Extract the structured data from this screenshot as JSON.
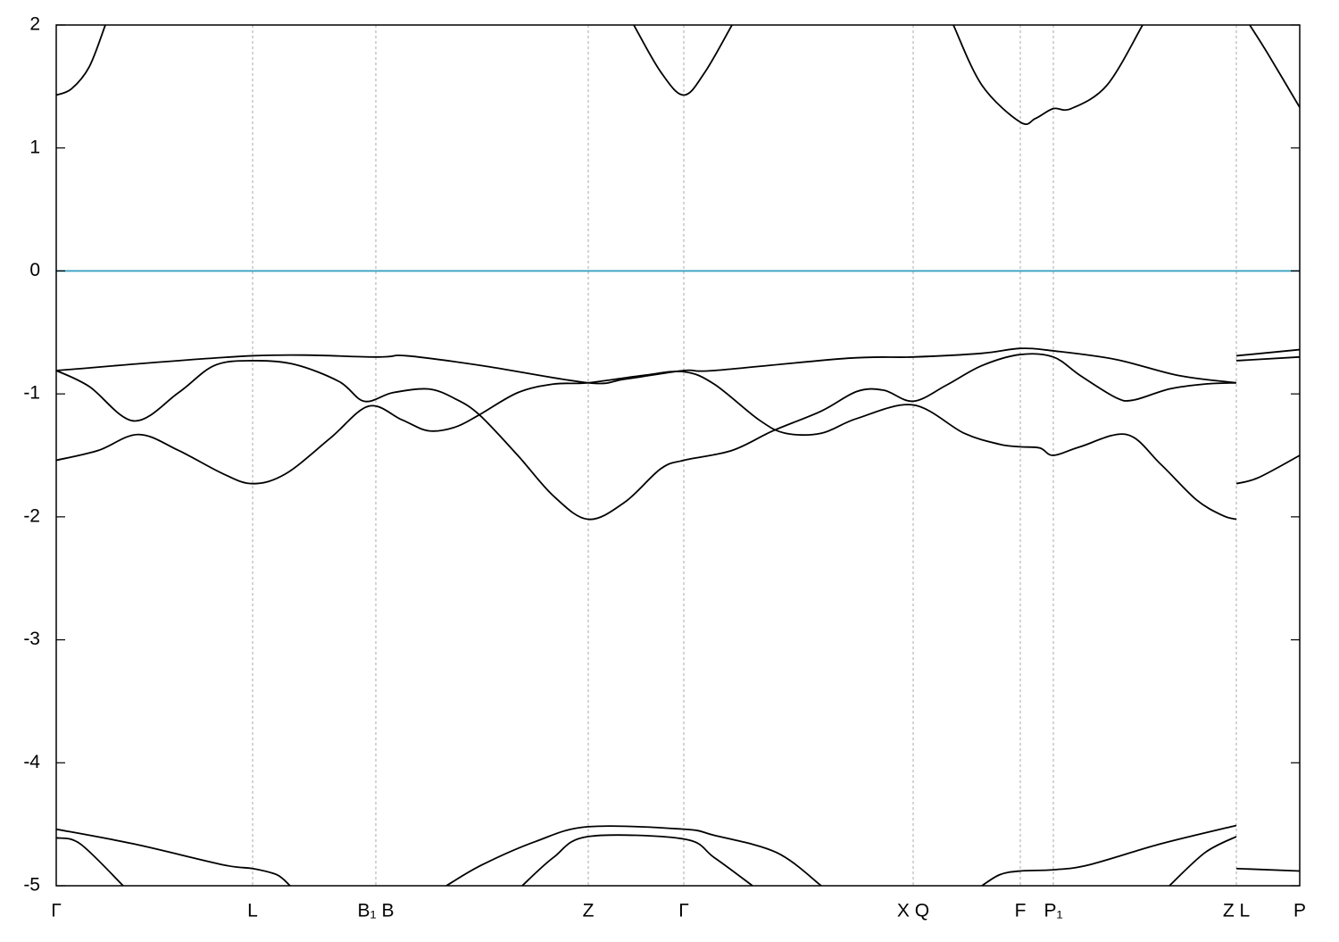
{
  "chart_data": {
    "type": "line",
    "xlim": [
      0,
      13.93
    ],
    "ylim": [
      -5,
      2
    ],
    "yticks": [
      2,
      1,
      0,
      -1,
      -2,
      -3,
      -4,
      -5
    ],
    "xticks": [
      {
        "value": 0,
        "label": "Γ"
      },
      {
        "value": 2.2,
        "label": "L"
      },
      {
        "value": 3.58,
        "label": "B₁ B"
      },
      {
        "value": 5.96,
        "label": "Z"
      },
      {
        "value": 7.03,
        "label": "Γ"
      },
      {
        "value": 9.6,
        "label": "X Q"
      },
      {
        "value": 10.8,
        "label": "F"
      },
      {
        "value": 11.17,
        "label": "P₁"
      },
      {
        "value": 13.22,
        "label": "Z L"
      },
      {
        "value": 13.93,
        "label": "P"
      }
    ],
    "xgrid": true,
    "series": [
      {
        "color": "#3aa0c0",
        "x": [
          0,
          13.93
        ],
        "values": [
          0,
          0
        ]
      },
      {
        "color": "#000000",
        "x": [
          0,
          2.2,
          3.58,
          3.92,
          4.77,
          5.96,
          6.37,
          7.03,
          7.37,
          8.87,
          9.6,
          10.37,
          10.8,
          11.17,
          11.87,
          12.57,
          13.22,
          13.22,
          13.22,
          13.93
        ],
        "values": [
          -0.81,
          -0.69,
          -0.7,
          -0.69,
          -0.77,
          -0.91,
          -0.88,
          -0.81,
          -0.81,
          -0.71,
          -0.7,
          -0.67,
          -0.63,
          -0.65,
          -0.72,
          -0.85,
          -0.91,
          null,
          -0.69,
          -0.64
        ]
      },
      {
        "color": "#000000",
        "x": [
          0,
          0.37,
          0.87,
          1.37,
          1.77,
          2.2,
          2.67,
          3.17,
          3.45,
          3.77,
          4.17,
          4.47,
          4.74,
          5.17,
          5.57,
          5.96,
          6.37,
          6.77,
          7.03,
          7.57,
          8.03,
          8.57,
          8.97,
          9.27,
          9.6,
          9.97,
          10.37,
          10.8,
          11.17,
          11.47,
          11.87,
          12.07,
          12.47,
          12.87,
          13.22,
          13.22,
          13.22,
          13.93
        ],
        "values": [
          -0.81,
          -0.94,
          -1.22,
          -0.99,
          -0.77,
          -0.73,
          -0.76,
          -0.9,
          -1.06,
          -0.99,
          -0.96,
          -1.04,
          -1.17,
          -1.5,
          -1.83,
          -2.02,
          -1.88,
          -1.61,
          -1.54,
          -1.46,
          -1.3,
          -1.14,
          -0.98,
          -0.97,
          -1.06,
          -0.93,
          -0.77,
          -0.68,
          -0.7,
          -0.85,
          -1.03,
          -1.05,
          -0.96,
          -0.92,
          -0.91,
          null,
          -0.73,
          -0.7
        ]
      },
      {
        "color": "#000000",
        "x": [
          0,
          0.47,
          0.92,
          1.37,
          1.87,
          2.2,
          2.57,
          3.07,
          3.5,
          3.87,
          4.17,
          4.47,
          4.74,
          5.17,
          5.57,
          5.96,
          6.57,
          7.03,
          7.37,
          7.87,
          8.17,
          8.57,
          8.97,
          9.6,
          10.17,
          10.57,
          10.8,
          11.02,
          11.17,
          11.47,
          11.99,
          12.37,
          12.77,
          13.07,
          13.22,
          13.22,
          13.22,
          13.47,
          13.93
        ],
        "values": [
          -1.54,
          -1.46,
          -1.33,
          -1.46,
          -1.65,
          -1.73,
          -1.65,
          -1.36,
          -1.1,
          -1.21,
          -1.3,
          -1.27,
          -1.17,
          -0.99,
          -0.92,
          -0.91,
          -0.85,
          -0.82,
          -0.92,
          -1.21,
          -1.32,
          -1.32,
          -1.2,
          -1.09,
          -1.32,
          -1.41,
          -1.43,
          -1.44,
          -1.5,
          -1.43,
          -1.33,
          -1.57,
          -1.86,
          -1.99,
          -2.02,
          null,
          -1.73,
          -1.68,
          -1.5
        ]
      },
      {
        "color": "#000000",
        "x": [
          0,
          0.17,
          0.37,
          0.55,
          3,
          6.47,
          6.77,
          7.03,
          7.27,
          7.57,
          8,
          10.05,
          10.37,
          10.8,
          10.97,
          11.17,
          11.37,
          11.77,
          12.17,
          12.8,
          13.37,
          13.57,
          13.93
        ],
        "values": [
          1.43,
          1.48,
          1.66,
          2.0,
          null,
          2.0,
          1.62,
          1.43,
          1.62,
          2.0,
          null,
          2.0,
          1.51,
          1.21,
          1.24,
          1.32,
          1.32,
          1.51,
          2.0,
          null,
          2.0,
          1.77,
          1.33
        ]
      },
      {
        "color": "#000000",
        "x": [
          0,
          0.87,
          1.87,
          2.2,
          2.47,
          2.62,
          3,
          4.37,
          4.77,
          5.37,
          5.96,
          7.03,
          7.37,
          8.07,
          8.57,
          9,
          10.37,
          10.57,
          10.8,
          11.17,
          11.57,
          12.37,
          13.22,
          13.22,
          13.22,
          13.93
        ],
        "values": [
          -4.54,
          -4.66,
          -4.83,
          -4.86,
          -4.91,
          -5.0,
          null,
          -5.0,
          -4.83,
          -4.64,
          -4.52,
          -4.54,
          -4.59,
          -4.73,
          -5.0,
          null,
          -5.0,
          -4.91,
          -4.88,
          -4.87,
          -4.83,
          -4.66,
          -4.51,
          null,
          -4.86,
          -4.88
        ]
      },
      {
        "color": "#000000",
        "x": [
          0,
          0.27,
          0.75,
          3,
          5.22,
          5.57,
          5.96,
          7.03,
          7.37,
          7.8,
          10,
          12.47,
          12.87,
          13.22
        ],
        "values": [
          -4.61,
          -4.66,
          -5.0,
          null,
          -5.0,
          -4.77,
          -4.6,
          -4.62,
          -4.77,
          -5.0,
          null,
          -5.0,
          -4.73,
          -4.6
        ]
      }
    ]
  }
}
